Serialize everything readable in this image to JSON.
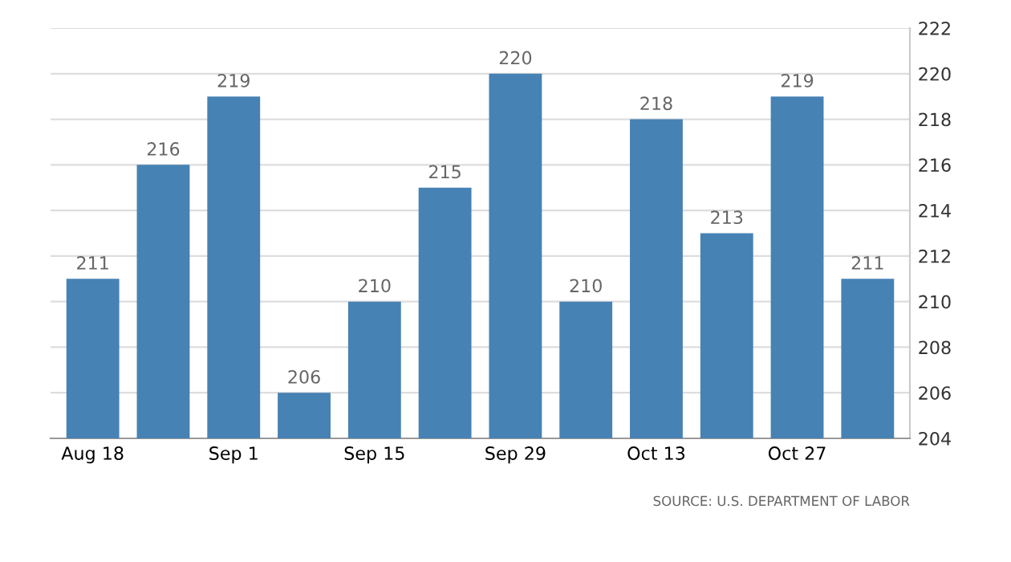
{
  "chart_data": {
    "type": "bar",
    "categories": [
      "Aug 18",
      null,
      "Sep 1",
      null,
      "Sep 15",
      null,
      "Sep 29",
      null,
      "Oct 13",
      null,
      "Oct 27",
      null
    ],
    "values": [
      211,
      216,
      219,
      206,
      210,
      215,
      220,
      210,
      218,
      213,
      219,
      211
    ],
    "color": "#4682b4",
    "ylim": [
      204,
      222
    ],
    "yticks": [
      204,
      206,
      208,
      210,
      212,
      214,
      216,
      218,
      220,
      222
    ],
    "grid": "y",
    "data_labels": true,
    "annotations": [
      "SOURCE: U.S. DEPARTMENT OF LABOR"
    ]
  }
}
